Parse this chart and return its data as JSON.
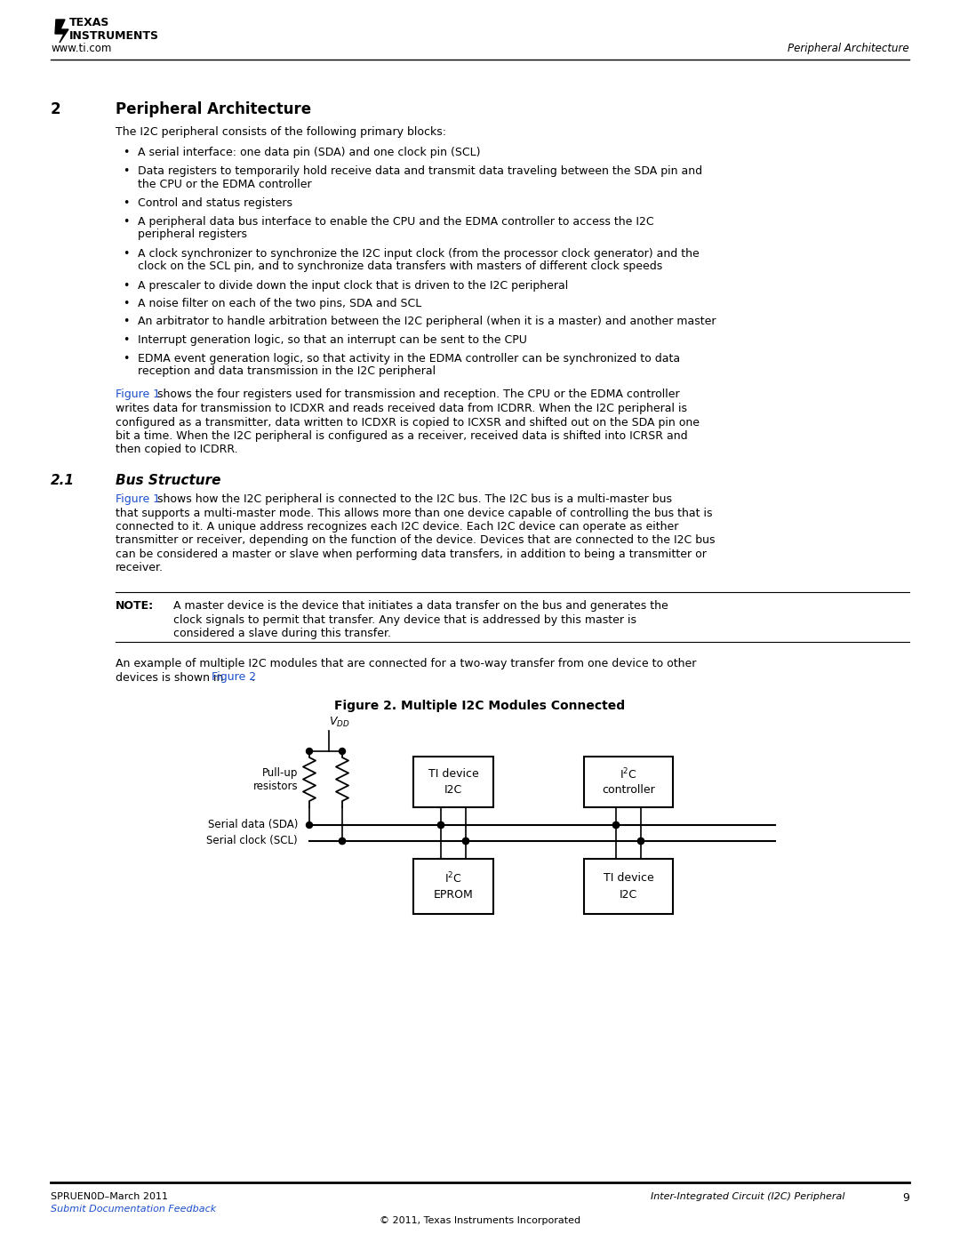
{
  "bg_color": "#ffffff",
  "link_color": "#1a4fcc",
  "header_left": "www.ti.com",
  "header_right": "Peripheral Architecture",
  "footer_left": "SPRUEN0D–March 2011",
  "footer_right_italic": "Inter-Integrated Circuit (I2C) Peripheral",
  "footer_page": "9",
  "footer_link": "Submit Documentation Feedback",
  "footer_copyright": "© 2011, Texas Instruments Incorporated",
  "section_num": "2",
  "section_title": "Peripheral Architecture",
  "intro_text": "The I2C peripheral consists of the following primary blocks:",
  "bullets": [
    "A serial interface: one data pin (SDA) and one clock pin (SCL)",
    "Data registers to temporarily hold receive data and transmit data traveling between the SDA pin and\nthe CPU or the EDMA controller",
    "Control and status registers",
    "A peripheral data bus interface to enable the CPU and the EDMA controller to access the I2C\nperipheral registers",
    "A clock synchronizer to synchronize the I2C input clock (from the processor clock generator) and the\nclock on the SCL pin, and to synchronize data transfers with masters of different clock speeds",
    "A prescaler to divide down the input clock that is driven to the I2C peripheral",
    "A noise filter on each of the two pins, SDA and SCL",
    "An arbitrator to handle arbitration between the I2C peripheral (when it is a master) and another master",
    "Interrupt generation logic, so that an interrupt can be sent to the CPU",
    "EDMA event generation logic, so that activity in the EDMA controller can be synchronized to data\nreception and data transmission in the I2C peripheral"
  ],
  "bullet_lines": [
    1,
    2,
    1,
    2,
    2,
    1,
    1,
    1,
    1,
    2
  ],
  "para1_blue": "Figure 1",
  "para1_line1": " shows the four registers used for transmission and reception. The CPU or the EDMA controller",
  "para1_line2": "writes data for transmission to ICDXR and reads received data from ICDRR. When the I2C peripheral is",
  "para1_line3": "configured as a transmitter, data written to ICDXR is copied to ICXSR and shifted out on the SDA pin one",
  "para1_line4": "bit a time. When the I2C peripheral is configured as a receiver, received data is shifted into ICRSR and",
  "para1_line5": "then copied to ICDRR.",
  "subsec_num": "2.1",
  "subsec_title": "Bus Structure",
  "bus_blue": "Figure 1",
  "bus_line1": " shows how the I2C peripheral is connected to the I2C bus. The I2C bus is a multi-master bus",
  "bus_line2": "that supports a multi-master mode. This allows more than one device capable of controlling the bus that is",
  "bus_line3": "connected to it. A unique address recognizes each I2C device. Each I2C device can operate as either",
  "bus_line4": "transmitter or receiver, depending on the function of the device. Devices that are connected to the I2C bus",
  "bus_line5": "can be considered a master or slave when performing data transfers, in addition to being a transmitter or",
  "bus_line6": "receiver.",
  "note_label": "NOTE:",
  "note_line1": "A master device is the device that initiates a data transfer on the bus and generates the",
  "note_line2": "clock signals to permit that transfer. Any device that is addressed by this master is",
  "note_line3": "considered a slave during this transfer.",
  "ex_line1a": "An example of multiple I2C modules that are connected for a two-way transfer from one device to other",
  "ex_line2a": "devices is shown in ",
  "ex_line2b": "Figure 2",
  "ex_line2c": ".",
  "fig_title": "Figure 2. Multiple I2C Modules Connected",
  "sda_label": "Serial data (SDA)",
  "scl_label": "Serial clock (SCL)",
  "pullup_label": "Pull-up\nresistors"
}
